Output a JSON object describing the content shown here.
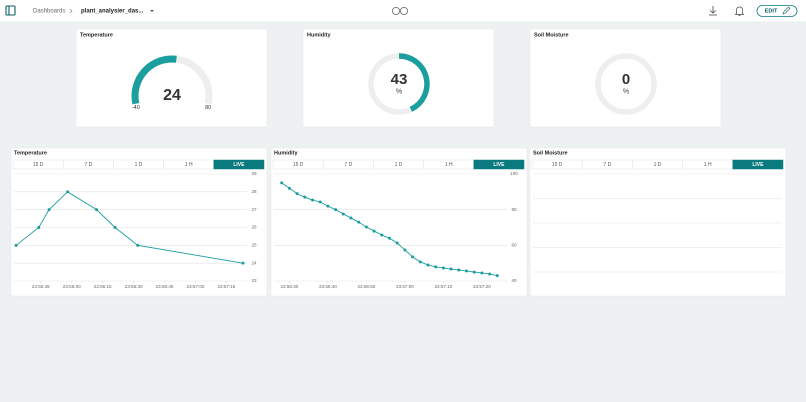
{
  "header": {
    "breadcrumb": "Dashboards",
    "dashboard": "plant_analysier_das...",
    "edit": "EDIT"
  },
  "gauges": [
    {
      "title": "Temperature",
      "value": 24,
      "min": -40,
      "max": 80,
      "color": "#1b9e9e"
    },
    {
      "title": "Humidity",
      "value": 43,
      "unit": "%",
      "range": [
        0,
        100
      ],
      "color": "#1b9e9e"
    },
    {
      "title": "Soil Moisture",
      "value": 0,
      "unit": "%",
      "range": [
        0,
        100
      ],
      "color": "#1b9e9e"
    }
  ],
  "charts": [
    {
      "type": "line",
      "title": "Temperature",
      "tabs": [
        "15 D",
        "7 D",
        "1 D",
        "1 H",
        "LIVE"
      ],
      "active_tab": "LIVE",
      "series": [
        {
          "name": "Temperature",
          "color": "#1b9e9e",
          "x": [
            86133,
            86144,
            86149,
            86158,
            86172,
            86181,
            86192,
            86243
          ],
          "values": [
            25,
            26,
            27,
            28,
            27,
            26,
            25,
            24
          ]
        }
      ],
      "xlim": [
        86132,
        86244
      ],
      "xticks": [
        {
          "value": 86145,
          "label": "23:55:45"
        },
        {
          "value": 86160,
          "label": "23:56:00"
        },
        {
          "value": 86175,
          "label": "23:56:15"
        },
        {
          "value": 86190,
          "label": "23:56:30"
        },
        {
          "value": 86205,
          "label": "23:56:45"
        },
        {
          "value": 86220,
          "label": "23:57:00"
        },
        {
          "value": 86235,
          "label": "23:57:15"
        }
      ],
      "ylim": [
        23,
        29
      ],
      "yticks": [
        23,
        24,
        25,
        26,
        27,
        28,
        29
      ],
      "grid": true
    },
    {
      "type": "line",
      "title": "Humidity",
      "tabs": [
        "15 D",
        "7 D",
        "1 D",
        "1 H",
        "LIVE"
      ],
      "active_tab": "LIVE",
      "series": [
        {
          "name": "Humidity",
          "color": "#1b9e9e",
          "x": [
            86188,
            86190,
            86192,
            86194,
            86196,
            86198,
            86200,
            86202,
            86204,
            86206,
            86208,
            86210,
            86212,
            86214,
            86216,
            86218,
            86220,
            86222,
            86224,
            86226,
            86228,
            86230,
            86232,
            86234,
            86236,
            86238,
            86240,
            86242,
            86244
          ],
          "values": [
            95,
            92,
            89,
            87,
            85.4,
            84.3,
            82,
            80,
            77.6,
            75.3,
            73,
            70.3,
            68,
            65.8,
            64,
            61.3,
            57.4,
            53.5,
            50.7,
            49,
            47.9,
            47.3,
            46.7,
            46.2,
            45.6,
            45,
            44.5,
            43.9,
            43
          ]
        }
      ],
      "xlim": [
        86186,
        86246
      ],
      "xticks": [
        {
          "value": 86190,
          "label": "23:56:30"
        },
        {
          "value": 86200,
          "label": "23:56:40"
        },
        {
          "value": 86210,
          "label": "23:56:50"
        },
        {
          "value": 86220,
          "label": "23:57:00"
        },
        {
          "value": 86230,
          "label": "23:57:10"
        },
        {
          "value": 86240,
          "label": "23:57:20"
        }
      ],
      "ylim": [
        40,
        100
      ],
      "yticks": [
        40,
        60,
        80,
        100
      ],
      "grid": true
    },
    {
      "type": "empty",
      "title": "Soil Moisture",
      "tabs": [
        "15 D",
        "7 D",
        "1 D",
        "1 H",
        "LIVE"
      ],
      "active_tab": "LIVE"
    }
  ]
}
